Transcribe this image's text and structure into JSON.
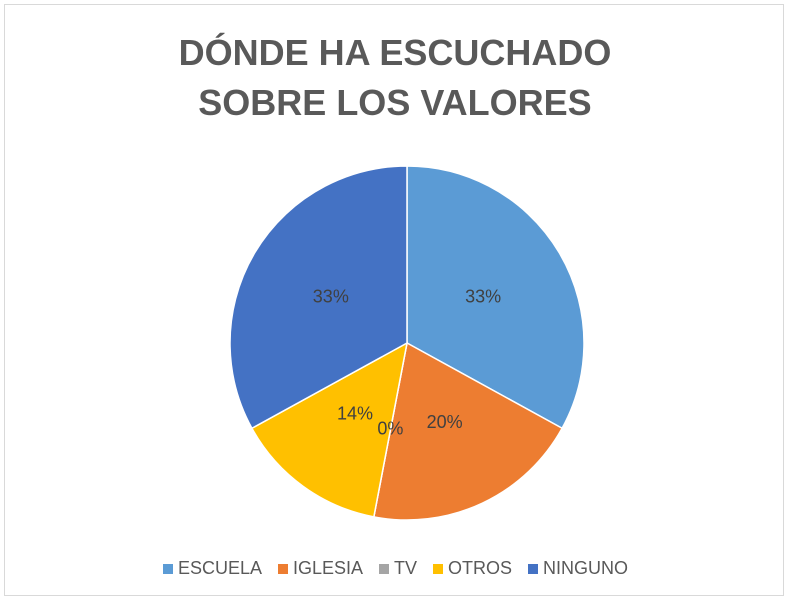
{
  "chart_data": {
    "type": "pie",
    "title": "DÓNDE HA ESCUCHADO SOBRE LOS VALORES",
    "categories": [
      "ESCUELA",
      "IGLESIA",
      "TV",
      "OTROS",
      "NINGUNO"
    ],
    "values": [
      33,
      20,
      0,
      14,
      33
    ],
    "value_labels": [
      "33%",
      "20%",
      "0%",
      "14%",
      "33%"
    ],
    "colors": [
      "#5b9bd5",
      "#ed7d31",
      "#a5a5a5",
      "#ffc000",
      "#4472c4"
    ],
    "legend": "bottom"
  }
}
